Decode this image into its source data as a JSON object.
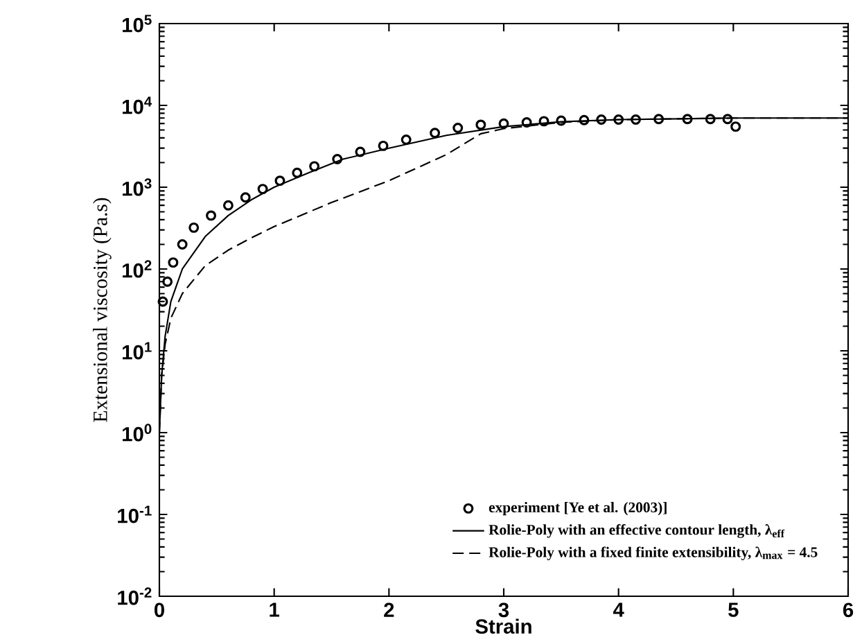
{
  "chart_data": {
    "type": "line",
    "xlabel": "Strain",
    "ylabel": "Extensional viscosity (Pa.s)",
    "xlim": [
      0,
      6
    ],
    "xticks": [
      0,
      1,
      2,
      3,
      4,
      5,
      6
    ],
    "ylim": [
      0.01,
      100000
    ],
    "log": "y",
    "yticks": [
      {
        "value": 0.01,
        "label": "10$^{-2}$"
      },
      {
        "value": 0.1,
        "label": "10$^{-1}$"
      },
      {
        "value": 1,
        "label": "10$^{0}$"
      },
      {
        "value": 10,
        "label": "10$^{1}$"
      },
      {
        "value": 100,
        "label": "10$^{2}$"
      },
      {
        "value": 1000,
        "label": "10$^{3}$"
      },
      {
        "value": 10000,
        "label": "10$^{4}$"
      },
      {
        "value": 100000,
        "label": "10$^{5}$"
      }
    ],
    "grid": false,
    "legend": "bottom right",
    "series": [
      {
        "name": "experiment [Ye et al. (2003)]",
        "type": "scatter",
        "marker": "circle",
        "color": "#000000",
        "x": [
          0.03,
          0.07,
          0.12,
          0.2,
          0.3,
          0.45,
          0.6,
          0.75,
          0.9,
          1.05,
          1.2,
          1.35,
          1.55,
          1.75,
          1.95,
          2.15,
          2.4,
          2.6,
          2.8,
          3.0,
          3.2,
          3.35,
          3.5,
          3.7,
          3.85,
          4.0,
          4.15,
          4.35,
          4.6,
          4.8,
          4.95,
          5.02
        ],
        "values": [
          40,
          70,
          120,
          200,
          320,
          450,
          600,
          750,
          950,
          1200,
          1500,
          1800,
          2200,
          2700,
          3200,
          3800,
          4600,
          5300,
          5800,
          6000,
          6200,
          6400,
          6500,
          6600,
          6700,
          6700,
          6700,
          6800,
          6800,
          6800,
          6800,
          5500
        ]
      },
      {
        "name": "Rolie-Poly with an effective contour length, λ$_{eff}$",
        "type": "line",
        "line_style": "solid",
        "color": "#000000",
        "x": [
          0,
          0.02,
          0.05,
          0.1,
          0.2,
          0.4,
          0.6,
          0.8,
          1.0,
          1.3,
          1.6,
          2.0,
          2.5,
          3.0,
          3.5,
          4.0,
          5.0,
          6.0
        ],
        "values": [
          1,
          5,
          15,
          40,
          100,
          250,
          450,
          700,
          1000,
          1500,
          2200,
          3000,
          4300,
          5500,
          6300,
          6700,
          7000,
          7000
        ]
      },
      {
        "name": "Rolie-Poly with a fixed finite extensibility, λ$_{max}$ = 4.5",
        "type": "line",
        "line_style": "dashed",
        "color": "#000000",
        "x": [
          0,
          0.02,
          0.05,
          0.1,
          0.2,
          0.4,
          0.6,
          0.8,
          1.0,
          1.5,
          2.0,
          2.5,
          2.8,
          3.0,
          3.5,
          4.0,
          5.0,
          6.0
        ],
        "values": [
          1,
          5,
          12,
          25,
          50,
          110,
          170,
          240,
          330,
          650,
          1200,
          2500,
          4500,
          5200,
          6200,
          6700,
          7000,
          7000
        ]
      }
    ]
  }
}
